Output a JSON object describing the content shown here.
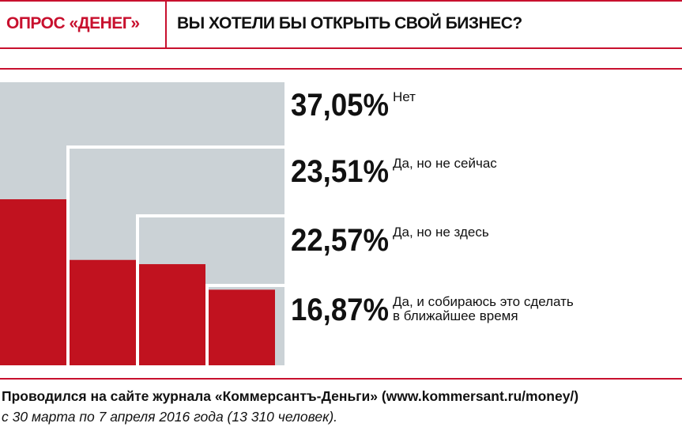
{
  "header": {
    "section_label": "ОПРОС «ДЕНЕГ»",
    "question": "ВЫ ХОТЕЛИ БЫ ОТКРЫТЬ СВОЙ БИЗНЕС?"
  },
  "colors": {
    "accent": "#c8102e",
    "bar_background": "#cbd2d6",
    "bar_fill": "#c1121f"
  },
  "chart_data": {
    "type": "bar",
    "title": "ВЫ ХОТЕЛИ БЫ ОТКРЫТЬ СВОЙ БИЗНЕС?",
    "categories": [
      "Нет",
      "Да, но не сейчас",
      "Да, но не здесь",
      "Да, и собираюсь это сделать в ближайшее время"
    ],
    "values": [
      37.05,
      23.51,
      22.57,
      16.87
    ],
    "value_labels": [
      "37,05%",
      "23,51%",
      "22,57%",
      "16,87%"
    ],
    "label_lines": [
      [
        "Нет"
      ],
      [
        "Да, но не сейчас"
      ],
      [
        "Да, но не здесь"
      ],
      [
        "Да, и собираюсь это сделать",
        "в ближайшее время"
      ]
    ],
    "unit": "%",
    "grid": false,
    "legend": "none"
  },
  "footer": {
    "line1": "Проводился на сайте журнала «Коммерсантъ-Деньги» (www.kommersant.ru/money/)",
    "line2": "с 30 марта по 7 апреля 2016 года (13 310 человек)."
  }
}
